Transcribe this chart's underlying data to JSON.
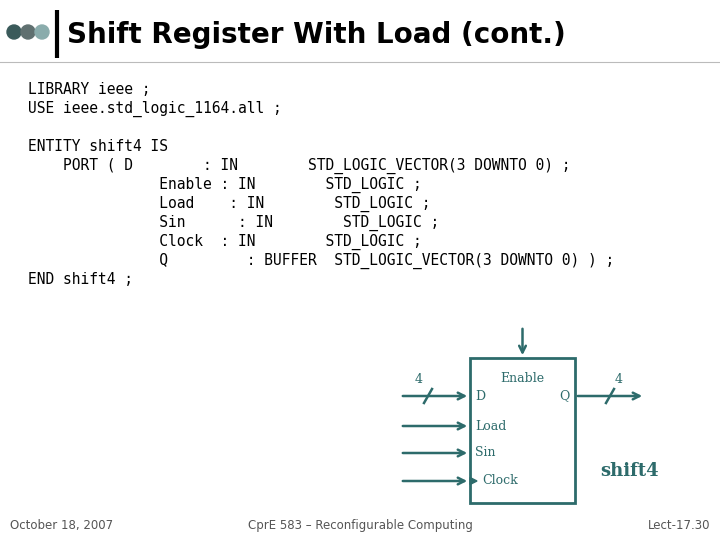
{
  "title": "Shift Register With Load (cont.)",
  "bg_color": "#ffffff",
  "title_color": "#000000",
  "code_color": "#000000",
  "circuit_color": "#2d6b6b",
  "title_fontsize": 20,
  "code_fontsize": 10.5,
  "footer_fontsize": 8.5,
  "code_lines": [
    "LIBRARY ieee ;",
    "USE ieee.std_logic_1164.all ;",
    "",
    "ENTITY shift4 IS",
    "    PORT ( D        : IN        STD_LOGIC_VECTOR(3 DOWNTO 0) ;",
    "               Enable : IN        STD_LOGIC ;",
    "               Load    : IN        STD_LOGIC ;",
    "               Sin      : IN        STD_LOGIC ;",
    "               Clock  : IN        STD_LOGIC ;",
    "               Q         : BUFFER  STD_LOGIC_VECTOR(3 DOWNTO 0) ) ;",
    "END shift4 ;"
  ],
  "footer_left": "October 18, 2007",
  "footer_center": "CprE 583 – Reconfigurable Computing",
  "footer_right": "Lect-17.30",
  "dot_colors": [
    "#3a5a5a",
    "#607070",
    "#8aacac"
  ]
}
